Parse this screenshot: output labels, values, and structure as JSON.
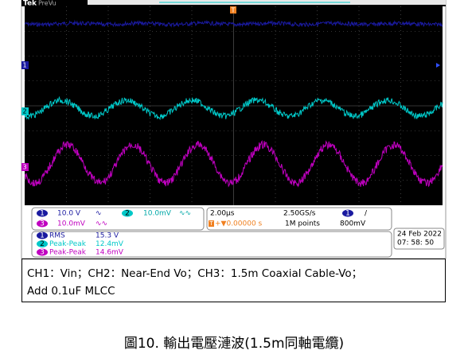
{
  "scope": {
    "header": {
      "brand": "Tek",
      "mode": "PreVu",
      "trigger": "T"
    },
    "channel_markers": [
      "1",
      "2",
      "3"
    ],
    "readout": {
      "ch1": {
        "num": "1",
        "scale": "10.0 V",
        "coupling": "∿"
      },
      "ch2": {
        "num": "2",
        "scale": "10.0mV",
        "coupling": "∿∿"
      },
      "ch3": {
        "num": "3",
        "scale": "10.0mV",
        "coupling": "∿∿"
      },
      "timebase": "2.00µs",
      "sample_rate": "2.50GS/s",
      "trigger_pos": "T",
      "delay": "+▼0.00000 s",
      "record": "1M points",
      "trigger_source": "1",
      "trigger_slope": "/",
      "trigger_level": "800mV",
      "date": "24 Feb   2022",
      "time": "07: 58: 50"
    },
    "measurements": [
      {
        "num": "1",
        "name": "RMS",
        "value": "15.3 V"
      },
      {
        "num": "2",
        "name": "Peak-Peak",
        "value": "12.4mV"
      },
      {
        "num": "3",
        "name": "Peak-Peak",
        "value": "14.6mV"
      }
    ]
  },
  "note": {
    "line1": "CH1：Vin；CH2：Near-End Vo；CH3：1.5m Coaxial Cable-Vo；",
    "line2": "Add 0.1uF MLCC"
  },
  "figure_caption": "圖10. 輸出電壓漣波(1.5m同軸電纜)"
}
